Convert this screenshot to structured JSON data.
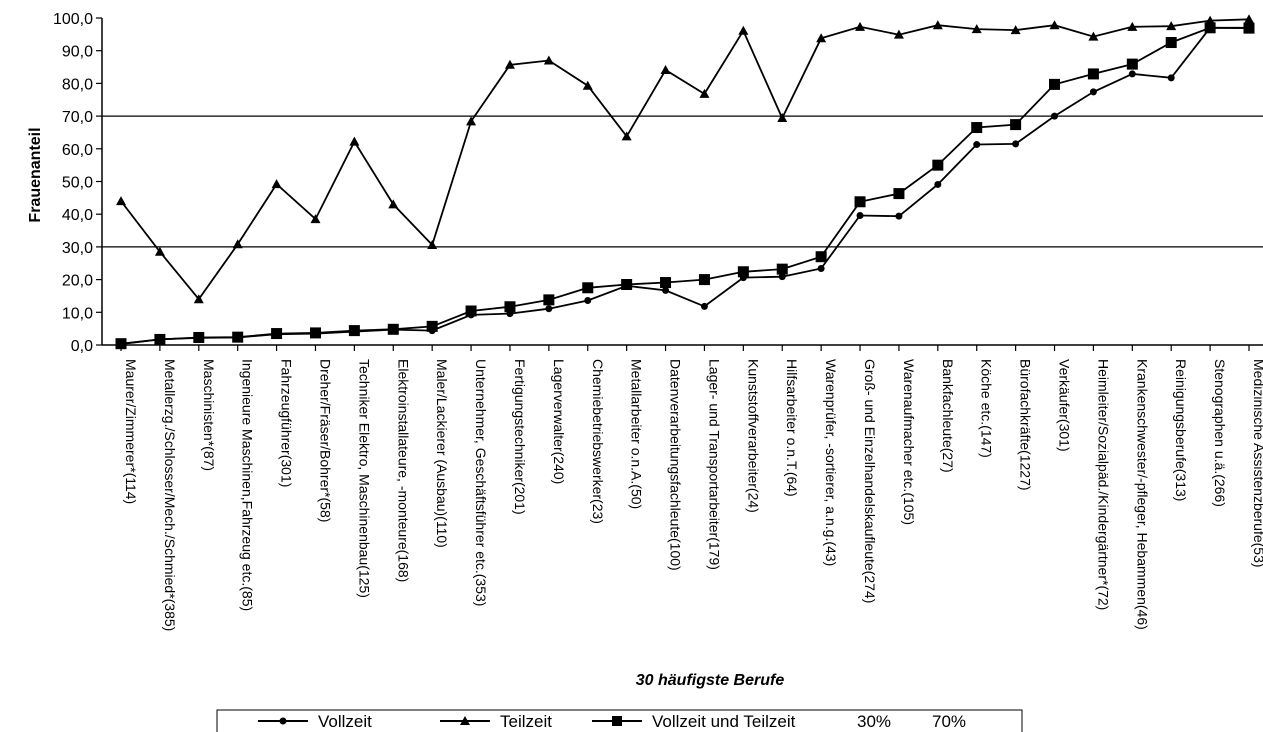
{
  "chart_data": {
    "type": "line",
    "xlabel": "30 häufigste Berufe",
    "ylabel": "Frauenanteil",
    "ylim": [
      0,
      100
    ],
    "yticks": [
      "0,0",
      "10,0",
      "20,0",
      "30,0",
      "40,0",
      "50,0",
      "60,0",
      "70,0",
      "80,0",
      "90,0",
      "100,0"
    ],
    "grid": false,
    "reference_lines": [
      30,
      70
    ],
    "legend_position": "bottom",
    "categories": [
      "Maurer/Zimmerer*(114)",
      "Metallerzg./Schlosser/Mech./Schmied*(385)",
      "Maschinisten*(87)",
      "Ingenieure Maschinen,Fahrzeug etc.(85)",
      "Fahrzeugführer(301)",
      "Dreher/Fräser/Bohrer*(58)",
      "Techniker Elektro, Maschinenbau(125)",
      "Elektroinstallateure, -monteure(168)",
      "Maler/Lackierer (Ausbau)(110)",
      "Unternehmer, Geschäftsführer etc.(353)",
      "Fertigungstechniker(201)",
      "Lagerverwalter(240)",
      "Chemiebetriebswerker(23)",
      "Metallarbeiter o.n.A.(50)",
      "Datenverarbeitungsfachleute(100)",
      "Lager- und Transportarbeiter(179)",
      "Kunststoffverarbeiter(24)",
      "Hilfsarbeiter o.n.T.(64)",
      "Warenprüfer, -sortierer, a.n.g.(43)",
      "Groß- und Einzelhandelskaufleute(274)",
      "Warenaufmacher etc.(105)",
      "Bankfachleute(27)",
      "Köche etc.(147)",
      "Bürofachkräfte(1227)",
      "Verkäufer(301)",
      "Heimleiter/Sozialpäd./Kindergärtner*(72)",
      "Krankenschwester/-pfleger, Hebammen(46)",
      "Reinigungsberufe(313)",
      "Stenographen u.ä.(266)",
      "Medizinische Assistenzberufe(53)"
    ],
    "series": [
      {
        "name": "Vollzeit",
        "marker": "circle",
        "values": [
          0.3,
          1.7,
          2.2,
          2.3,
          3.3,
          3.5,
          4.1,
          4.7,
          4.4,
          9.2,
          9.6,
          11.1,
          13.6,
          18.1,
          16.7,
          11.8,
          20.6,
          20.9,
          23.4,
          39.6,
          39.4,
          49.1,
          61.3,
          61.5,
          70.0,
          77.4,
          82.9,
          81.7,
          97.0,
          97.0
        ]
      },
      {
        "name": "Teilzeit",
        "marker": "triangle",
        "values": [
          44.0,
          28.5,
          14.0,
          30.8,
          49.2,
          38.5,
          62.2,
          43.0,
          30.6,
          68.4,
          85.7,
          87.0,
          79.3,
          63.8,
          84.1,
          76.8,
          96.1,
          69.4,
          93.8,
          97.3,
          94.9,
          97.8,
          96.6,
          96.3,
          97.8,
          94.3,
          97.3,
          97.5,
          99.2,
          99.6
        ]
      },
      {
        "name": "Vollzeit und Teilzeit",
        "marker": "square",
        "values": [
          0.4,
          1.7,
          2.3,
          2.4,
          3.5,
          3.7,
          4.4,
          4.8,
          5.7,
          10.4,
          11.7,
          13.8,
          17.5,
          18.5,
          19.1,
          20.0,
          22.4,
          23.2,
          27.0,
          43.8,
          46.3,
          55.0,
          66.5,
          67.4,
          79.7,
          82.9,
          85.9,
          92.5,
          97.0,
          96.9
        ]
      }
    ],
    "legend_extra": [
      "30%",
      "70%"
    ]
  }
}
